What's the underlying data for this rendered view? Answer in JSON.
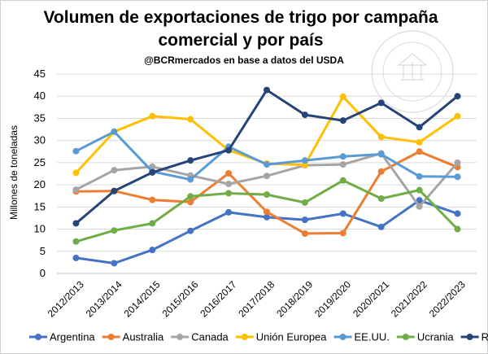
{
  "chart_data": {
    "type": "line",
    "title_lines": [
      "Volumen de exportaciones de trigo por campaña",
      "comercial y por país"
    ],
    "subtitle": "@BCRmercados en base a datos del USDA",
    "ylabel": "Millones de toneladas",
    "xlabel": "",
    "ylim": [
      0,
      45
    ],
    "yticks": [
      "0",
      "5",
      "10",
      "15",
      "20",
      "25",
      "30",
      "35",
      "40",
      "45"
    ],
    "grid": true,
    "legend_position": "bottom",
    "categories": [
      "2012/2013",
      "2013/2014",
      "2014/2015",
      "2015/2016",
      "2016/2017",
      "2017/2018",
      "2018/2019",
      "2019/2020",
      "2020/2021",
      "2021/2022",
      "2022/2023"
    ],
    "series": [
      {
        "name": "Argentina",
        "color": "#4472C4",
        "values": [
          3.5,
          2.3,
          5.3,
          9.6,
          13.8,
          12.7,
          12.1,
          13.5,
          10.5,
          16.5,
          13.5
        ]
      },
      {
        "name": "Australia",
        "color": "#ED7D31",
        "values": [
          18.5,
          18.6,
          16.6,
          16.1,
          22.6,
          13.9,
          9.0,
          9.1,
          23.0,
          27.5,
          24.0
        ]
      },
      {
        "name": "Canada",
        "color": "#A5A5A5",
        "values": [
          18.9,
          23.3,
          24.1,
          22.1,
          20.2,
          22.0,
          24.4,
          24.6,
          27.1,
          15.1,
          25.0
        ]
      },
      {
        "name": "Unión Europea",
        "color": "#FFC000",
        "values": [
          22.7,
          32.0,
          35.5,
          34.8,
          27.8,
          24.8,
          24.5,
          39.9,
          30.8,
          29.6,
          35.5
        ]
      },
      {
        "name": "EE.UU.",
        "color": "#5B9BD5",
        "values": [
          27.6,
          32.0,
          23.0,
          21.2,
          28.6,
          24.6,
          25.5,
          26.4,
          26.9,
          21.9,
          21.8
        ]
      },
      {
        "name": "Ucrania",
        "color": "#70AD47",
        "values": [
          7.2,
          9.7,
          11.3,
          17.4,
          18.1,
          17.8,
          16.0,
          21.0,
          16.9,
          18.8,
          10.0
        ]
      },
      {
        "name": "Rusia",
        "color": "#264478",
        "values": [
          11.3,
          18.6,
          22.8,
          25.5,
          27.8,
          41.4,
          35.8,
          34.5,
          38.5,
          33.0,
          40.0
        ]
      }
    ]
  },
  "watermark": {
    "text": "BOLSA DE COMERCIO DE ROSARIO"
  }
}
